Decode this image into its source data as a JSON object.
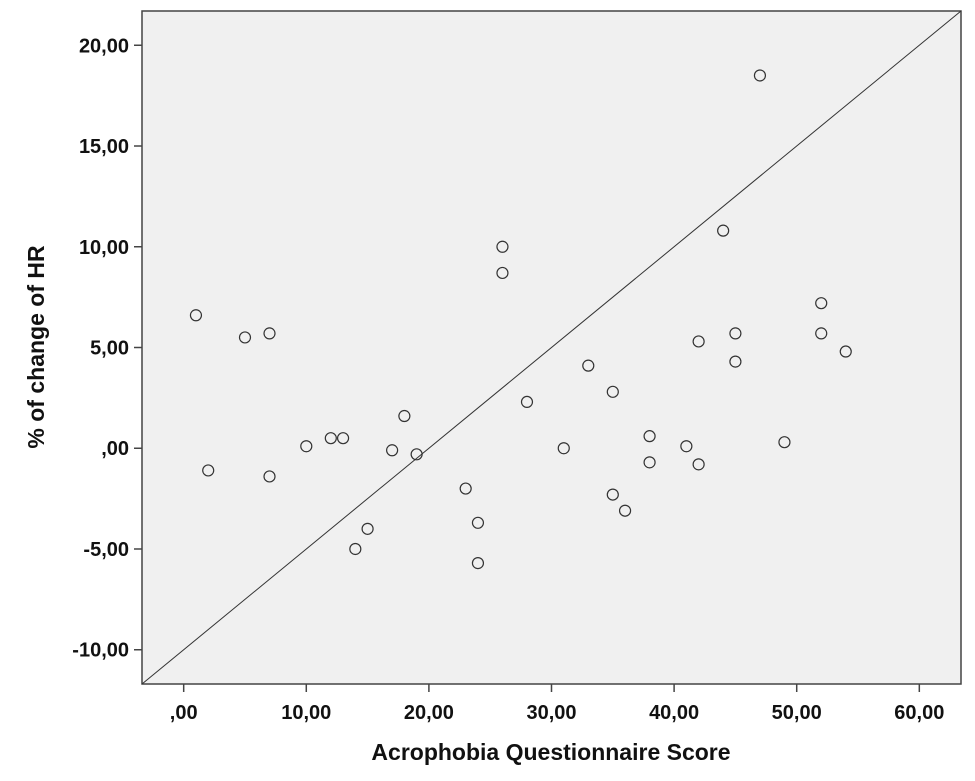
{
  "chart_data": {
    "type": "scatter",
    "title": "",
    "xlabel": "Acrophobia Questionnaire Score",
    "ylabel": "% of change of HR",
    "xlim": [
      -3.4,
      63.4
    ],
    "ylim": [
      -11.7,
      21.7
    ],
    "grid": false,
    "legend": "none",
    "x_ticks": [
      0,
      10,
      20,
      30,
      40,
      50,
      60
    ],
    "x_tick_labels": [
      ",00",
      "10,00",
      "20,00",
      "30,00",
      "40,00",
      "50,00",
      "60,00"
    ],
    "y_ticks": [
      -10,
      -5,
      0,
      5,
      10,
      15,
      20
    ],
    "y_tick_labels": [
      "-10,00",
      "-5,00",
      ",00",
      "5,00",
      "10,00",
      "15,00",
      "20,00"
    ],
    "reference_line": {
      "x": [
        -3.4,
        63.4
      ],
      "y": [
        -11.7,
        21.7
      ]
    },
    "colors": {
      "plot_background": "#f0f0f0",
      "marker_stroke": "#333333",
      "axis": "#444444",
      "text": "#111111"
    },
    "series": [
      {
        "points": [
          {
            "x": 1,
            "y": 6.6
          },
          {
            "x": 2,
            "y": -1.1
          },
          {
            "x": 5,
            "y": 5.5
          },
          {
            "x": 7,
            "y": 5.7
          },
          {
            "x": 7,
            "y": -1.4
          },
          {
            "x": 10,
            "y": 0.1
          },
          {
            "x": 12,
            "y": 0.5
          },
          {
            "x": 13,
            "y": 0.5
          },
          {
            "x": 14,
            "y": -5.0
          },
          {
            "x": 15,
            "y": -4.0
          },
          {
            "x": 17,
            "y": -0.1
          },
          {
            "x": 18,
            "y": 1.6
          },
          {
            "x": 19,
            "y": -0.3
          },
          {
            "x": 23,
            "y": -2.0
          },
          {
            "x": 24,
            "y": -3.7
          },
          {
            "x": 24,
            "y": -5.7
          },
          {
            "x": 26,
            "y": 10.0
          },
          {
            "x": 26,
            "y": 8.7
          },
          {
            "x": 28,
            "y": 2.3
          },
          {
            "x": 31,
            "y": 0.0
          },
          {
            "x": 33,
            "y": 4.1
          },
          {
            "x": 35,
            "y": 2.8
          },
          {
            "x": 35,
            "y": -2.3
          },
          {
            "x": 36,
            "y": -3.1
          },
          {
            "x": 38,
            "y": 0.6
          },
          {
            "x": 38,
            "y": -0.7
          },
          {
            "x": 41,
            "y": 0.1
          },
          {
            "x": 42,
            "y": 5.3
          },
          {
            "x": 42,
            "y": -0.8
          },
          {
            "x": 44,
            "y": 10.8
          },
          {
            "x": 45,
            "y": 5.7
          },
          {
            "x": 45,
            "y": 4.3
          },
          {
            "x": 47,
            "y": 18.5
          },
          {
            "x": 49,
            "y": 0.3
          },
          {
            "x": 52,
            "y": 7.2
          },
          {
            "x": 52,
            "y": 5.7
          },
          {
            "x": 54,
            "y": 4.8
          }
        ]
      }
    ]
  }
}
